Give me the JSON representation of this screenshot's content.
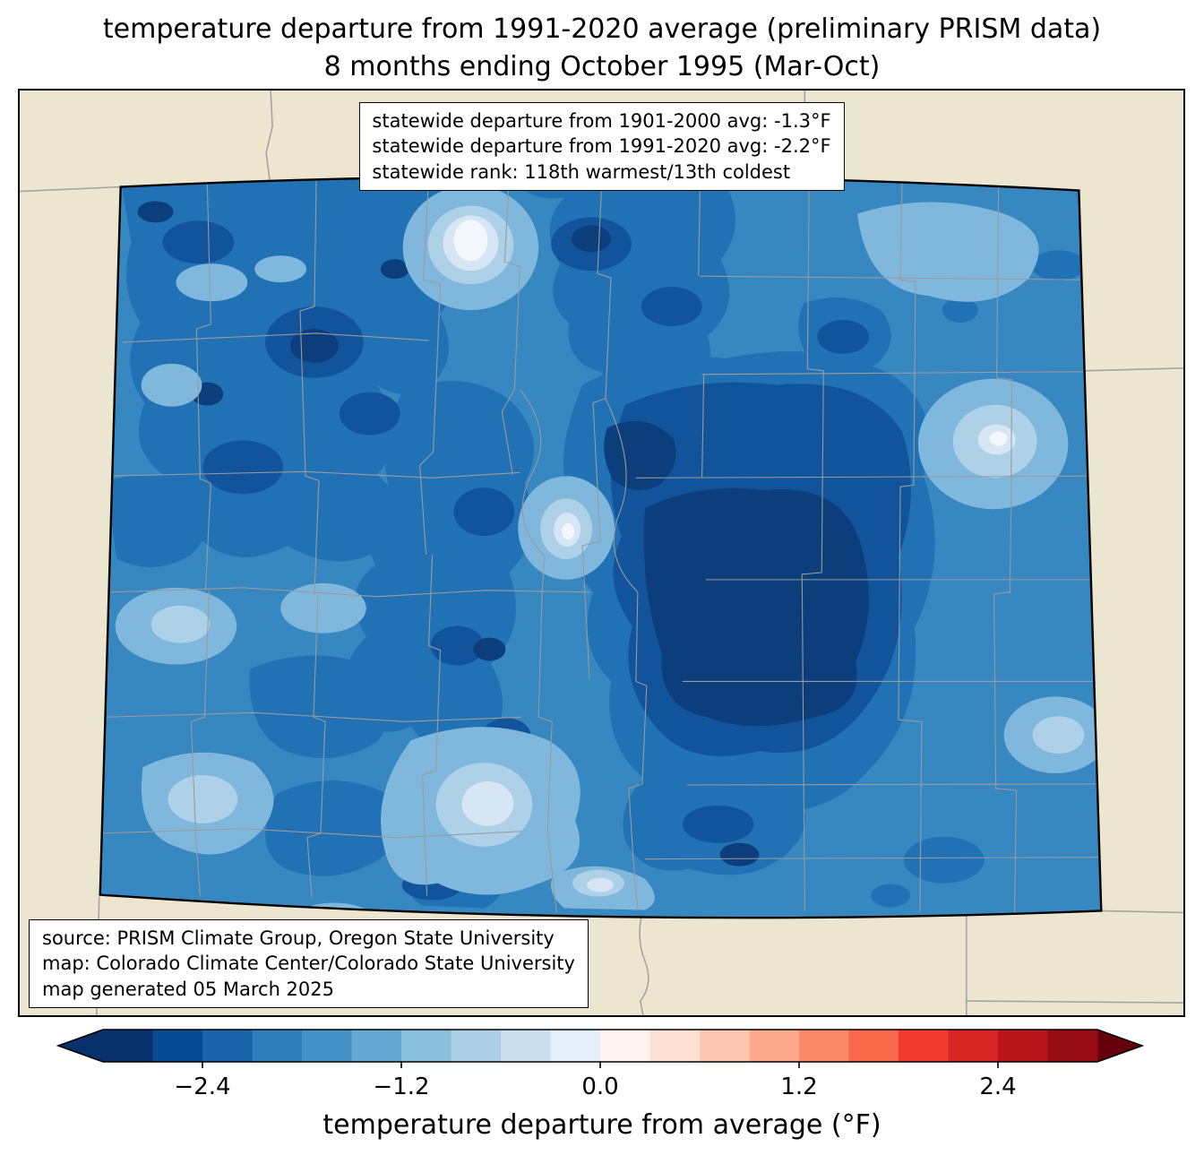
{
  "title": {
    "line1": "temperature departure from 1991-2020 average (preliminary PRISM data)",
    "line2": "8 months ending October 1995 (Mar-Oct)"
  },
  "stats_box": {
    "line1": "statewide departure from 1901-2000 avg: -1.3°F",
    "line2": "statewide departure from 1991-2020 avg: -2.2°F",
    "line3": "statewide rank: 118th warmest/13th coldest"
  },
  "source_box": {
    "line1": "source: PRISM Climate Group, Oregon State University",
    "line2": "map: Colorado Climate Center/Colorado State University",
    "line3": "map generated 05 March 2025"
  },
  "map": {
    "region": "Colorado",
    "background_color": "#ece5cf",
    "state_border_color": "#000000",
    "county_line_color": "#9b9b9b",
    "neighbor_line_color": "#a3a3a3",
    "fill_levels": {
      "white": "#f2f8fd",
      "light3": "#d6e6f4",
      "light2": "#aed1e7",
      "light1": "#7fb8dc",
      "base": "#3787c1",
      "dark1": "#2171b5",
      "dark2": "#11549c",
      "dark3": "#0b3e7a"
    }
  },
  "colorbar": {
    "label": "temperature departure from average (°F)",
    "ticks": [
      "−2.4",
      "−1.2",
      "0.0",
      "1.2",
      "2.4"
    ],
    "tick_values": [
      -2.4,
      -1.2,
      0.0,
      1.2,
      2.4
    ],
    "range": [
      -3.0,
      3.0
    ],
    "segment_colors": [
      "#08306b",
      "#084a91",
      "#1b63a8",
      "#2e7ebc",
      "#4292c6",
      "#64a9d3",
      "#89bedc",
      "#abd0e6",
      "#cadef0",
      "#e3eef9",
      "#fdf4ef",
      "#fee0d2",
      "#fdc6b0",
      "#fca98b",
      "#fc8a6a",
      "#f9694c",
      "#ef3c2c",
      "#d92523",
      "#b8141a",
      "#970b13"
    ],
    "left_arrow_color": "#08306b",
    "right_arrow_color": "#67000d"
  }
}
